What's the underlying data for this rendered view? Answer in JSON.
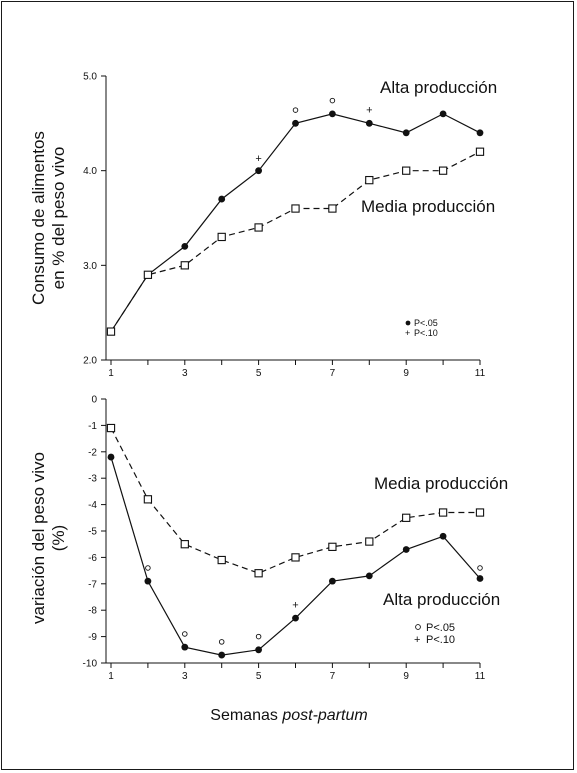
{
  "x_axis_title": {
    "main": "Semanas ",
    "italic": "post-partum"
  },
  "chart_data": [
    {
      "type": "line",
      "ylabel_lines": [
        "Consumo de alimentos",
        "en % del peso vivo"
      ],
      "xlim": [
        1,
        11
      ],
      "ylim": [
        2.0,
        5.0
      ],
      "x_ticks": [
        "1",
        "3",
        "5",
        "7",
        "9",
        "11"
      ],
      "y_ticks": [
        "2.0",
        "3.0",
        "4.0",
        "5.0"
      ],
      "series": [
        {
          "name": "Alta producción",
          "style": "solid-filled-circle",
          "x": [
            1,
            2,
            3,
            4,
            5,
            6,
            7,
            8,
            9,
            10,
            11
          ],
          "y": [
            2.3,
            2.9,
            3.2,
            3.7,
            4.0,
            4.5,
            4.6,
            4.5,
            4.4,
            4.6,
            4.4
          ]
        },
        {
          "name": "Media producción",
          "style": "dashed-open-square",
          "x": [
            1,
            2,
            3,
            4,
            5,
            6,
            7,
            8,
            9,
            10,
            11
          ],
          "y": [
            2.3,
            2.9,
            3.0,
            3.3,
            3.4,
            3.6,
            3.6,
            3.9,
            4.0,
            4.0,
            4.2
          ]
        }
      ],
      "significance_marks": [
        {
          "x": 5,
          "y": 4.13,
          "mark": "+"
        },
        {
          "x": 6,
          "y": 4.64,
          "mark": "circle"
        },
        {
          "x": 7,
          "y": 4.74,
          "mark": "circle"
        },
        {
          "x": 8,
          "y": 4.64,
          "mark": "+"
        }
      ],
      "legend": [
        {
          "symbol": "dot",
          "text": "P<.05"
        },
        {
          "symbol": "+",
          "text": "P<.10"
        }
      ]
    },
    {
      "type": "line",
      "ylabel_lines": [
        "variación del peso vivo",
        "(%)"
      ],
      "xlim": [
        1,
        11
      ],
      "ylim": [
        -10,
        0
      ],
      "x_ticks": [
        "1",
        "3",
        "5",
        "7",
        "9",
        "11"
      ],
      "y_ticks": [
        "0",
        "-1",
        "-2",
        "-3",
        "-4",
        "-5",
        "-6",
        "-7",
        "-8",
        "-9",
        "-10"
      ],
      "series": [
        {
          "name": "Media producción",
          "style": "dashed-open-square",
          "x": [
            1,
            2,
            3,
            4,
            5,
            6,
            7,
            8,
            9,
            10,
            11
          ],
          "y": [
            -1.1,
            -3.8,
            -5.5,
            -6.1,
            -6.6,
            -6.0,
            -5.6,
            -5.4,
            -4.5,
            -4.3,
            -4.3
          ]
        },
        {
          "name": "Alta producción",
          "style": "solid-filled-circle",
          "x": [
            1,
            2,
            3,
            4,
            5,
            6,
            7,
            8,
            9,
            10,
            11
          ],
          "y": [
            -2.2,
            -6.9,
            -9.4,
            -9.7,
            -9.5,
            -8.3,
            -6.9,
            -6.7,
            -5.7,
            -5.2,
            -6.8
          ]
        }
      ],
      "significance_marks": [
        {
          "x": 2,
          "y": -6.4,
          "mark": "circle"
        },
        {
          "x": 3,
          "y": -8.9,
          "mark": "circle"
        },
        {
          "x": 4,
          "y": -9.2,
          "mark": "circle"
        },
        {
          "x": 5,
          "y": -9.0,
          "mark": "circle"
        },
        {
          "x": 6,
          "y": -7.8,
          "mark": "+"
        },
        {
          "x": 11,
          "y": -6.4,
          "mark": "circle"
        }
      ],
      "legend": [
        {
          "symbol": "circle",
          "text": "P<.05"
        },
        {
          "symbol": "+",
          "text": "P<.10"
        }
      ]
    }
  ]
}
